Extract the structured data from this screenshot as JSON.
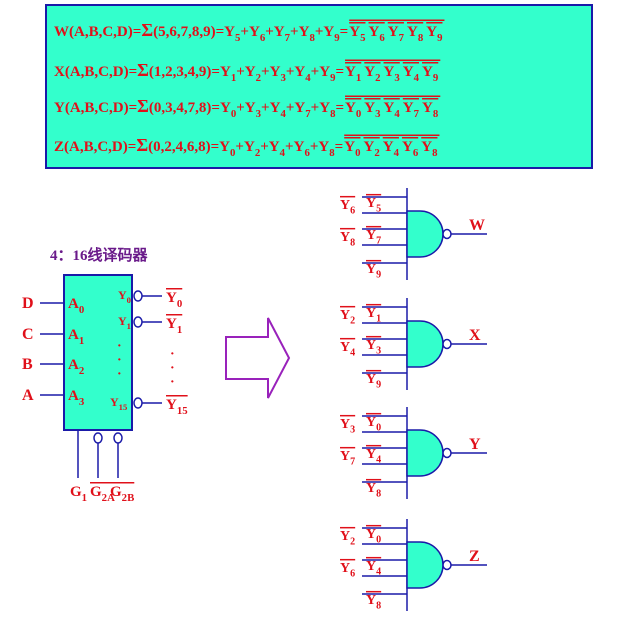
{
  "equations": {
    "w": {
      "lhs": "W(A,B,C,D)",
      "eq1": " = ",
      "sigma": "Σ",
      "terms": "(5,6,7,8,9)",
      "eq2": " = ",
      "sum": [
        {
          "name": "Y",
          "sub": "5"
        },
        {
          "name": "Y",
          "sub": "6"
        },
        {
          "name": "Y",
          "sub": "7"
        },
        {
          "name": "Y",
          "sub": "8"
        },
        {
          "name": "Y",
          "sub": "9"
        }
      ],
      "eq3": "=",
      "product": [
        {
          "name": "Y",
          "sub": "5"
        },
        {
          "name": "Y",
          "sub": "6"
        },
        {
          "name": "Y",
          "sub": "7"
        },
        {
          "name": "Y",
          "sub": "8"
        },
        {
          "name": "Y",
          "sub": "9"
        }
      ]
    },
    "x": {
      "lhs": "X(A,B,C,D)",
      "eq1": " = ",
      "sigma": "Σ",
      "terms": "(1,2,3,4,9)",
      "eq2": " = ",
      "sum": [
        {
          "name": "Y",
          "sub": "1"
        },
        {
          "name": "Y",
          "sub": "2"
        },
        {
          "name": "Y",
          "sub": "3"
        },
        {
          "name": "Y",
          "sub": "4"
        },
        {
          "name": "Y",
          "sub": "9"
        }
      ],
      "eq3": "=",
      "product": [
        {
          "name": "Y",
          "sub": "1"
        },
        {
          "name": "Y",
          "sub": "2"
        },
        {
          "name": "Y",
          "sub": "3"
        },
        {
          "name": "Y",
          "sub": "4"
        },
        {
          "name": "Y",
          "sub": "9"
        }
      ]
    },
    "y": {
      "lhs": "Y(A,B,C,D)",
      "eq1": " = ",
      "sigma": "Σ",
      "terms": "(0,3,4,7,8)",
      "eq2": " = ",
      "sum": [
        {
          "name": "Y",
          "sub": "0"
        },
        {
          "name": "Y",
          "sub": "3"
        },
        {
          "name": "Y",
          "sub": "4"
        },
        {
          "name": "Y",
          "sub": "7"
        },
        {
          "name": "Y",
          "sub": "8"
        }
      ],
      "eq3": "=",
      "product": [
        {
          "name": "Y",
          "sub": "0"
        },
        {
          "name": "Y",
          "sub": "3"
        },
        {
          "name": "Y",
          "sub": "4"
        },
        {
          "name": "Y",
          "sub": "7"
        },
        {
          "name": "Y",
          "sub": "8"
        }
      ]
    },
    "z": {
      "lhs": "Z(A,B,C,D)",
      "eq1": " = ",
      "sigma": "Σ",
      "terms": "(0,2,4,6,8)",
      "eq2": " = ",
      "sum": [
        {
          "name": "Y",
          "sub": "0"
        },
        {
          "name": "Y",
          "sub": "2"
        },
        {
          "name": "Y",
          "sub": "4"
        },
        {
          "name": "Y",
          "sub": "6"
        },
        {
          "name": "Y",
          "sub": "8"
        }
      ],
      "eq3": "=",
      "product": [
        {
          "name": "Y",
          "sub": "0"
        },
        {
          "name": "Y",
          "sub": "2"
        },
        {
          "name": "Y",
          "sub": "4"
        },
        {
          "name": "Y",
          "sub": "6"
        },
        {
          "name": "Y",
          "sub": "8"
        }
      ]
    }
  },
  "decoder": {
    "title": "4：16线译码器",
    "inputs": [
      {
        "signal": "D",
        "pin": "A",
        "sub": "0"
      },
      {
        "signal": "C",
        "pin": "A",
        "sub": "1"
      },
      {
        "signal": "B",
        "pin": "A",
        "sub": "2"
      },
      {
        "signal": "A",
        "pin": "A",
        "sub": "3"
      }
    ],
    "outputs": [
      {
        "pin": "Y",
        "pin_sub": "0",
        "label": "Y",
        "label_sub": "0"
      },
      {
        "pin": "Y",
        "pin_sub": "1",
        "label": "Y",
        "label_sub": "1"
      },
      {
        "pin": "Y",
        "pin_sub": "15",
        "label": "Y",
        "label_sub": "15"
      }
    ],
    "dots": "·",
    "enables": [
      {
        "name": "G",
        "sub": "1"
      },
      {
        "name": "G",
        "sub": "2A"
      },
      {
        "name": "G",
        "sub": "2B"
      }
    ]
  },
  "gates": [
    {
      "output": "W",
      "inputs": [
        {
          "name": "Y",
          "sub": "5"
        },
        {
          "name": "Y",
          "sub": "6"
        },
        {
          "name": "Y",
          "sub": "7"
        },
        {
          "name": "Y",
          "sub": "8"
        },
        {
          "name": "Y",
          "sub": "9"
        }
      ]
    },
    {
      "output": "X",
      "inputs": [
        {
          "name": "Y",
          "sub": "1"
        },
        {
          "name": "Y",
          "sub": "2"
        },
        {
          "name": "Y",
          "sub": "3"
        },
        {
          "name": "Y",
          "sub": "4"
        },
        {
          "name": "Y",
          "sub": "9"
        }
      ]
    },
    {
      "output": "Y",
      "inputs": [
        {
          "name": "Y",
          "sub": "0"
        },
        {
          "name": "Y",
          "sub": "3"
        },
        {
          "name": "Y",
          "sub": "4"
        },
        {
          "name": "Y",
          "sub": "7"
        },
        {
          "name": "Y",
          "sub": "8"
        }
      ]
    },
    {
      "output": "Z",
      "inputs": [
        {
          "name": "Y",
          "sub": "0"
        },
        {
          "name": "Y",
          "sub": "2"
        },
        {
          "name": "Y",
          "sub": "4"
        },
        {
          "name": "Y",
          "sub": "6"
        },
        {
          "name": "Y",
          "sub": "8"
        }
      ]
    }
  ],
  "colors": {
    "box_fill": "#33ffcc",
    "text_red": "#e0101a",
    "wire_blue": "#1a1aa8",
    "title_purple": "#6a1a8a",
    "arrow_purple": "#9922bb"
  }
}
